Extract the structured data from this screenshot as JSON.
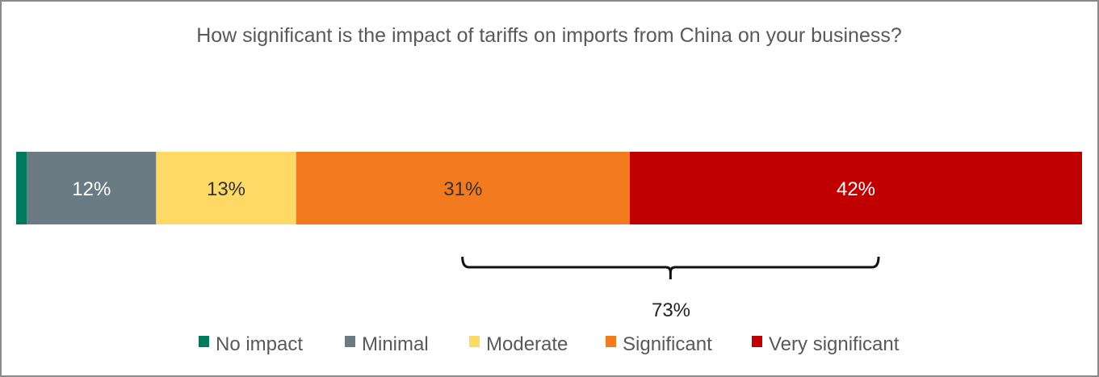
{
  "chart_data": {
    "type": "bar",
    "orientation": "horizontal-stacked-100",
    "title": "How significant is the impact of tariffs on imports from China on your business?",
    "categories": [
      "No impact",
      "Minimal",
      "Moderate",
      "Significant",
      "Very significant"
    ],
    "values": [
      1,
      12,
      13,
      31,
      42
    ],
    "data_labels": [
      "",
      "12%",
      "13%",
      "31%",
      "42%"
    ],
    "colors": [
      "#007a5e",
      "#6b7b83",
      "#ffd966",
      "#f47a20",
      "#c00000"
    ],
    "label_colors": [
      "#ffffff",
      "#ffffff",
      "#333333",
      "#333333",
      "#ffffff"
    ],
    "annotation": {
      "label": "73%",
      "spans": [
        "Significant",
        "Very significant"
      ]
    },
    "legend": {
      "position": "bottom"
    },
    "grid": false
  }
}
